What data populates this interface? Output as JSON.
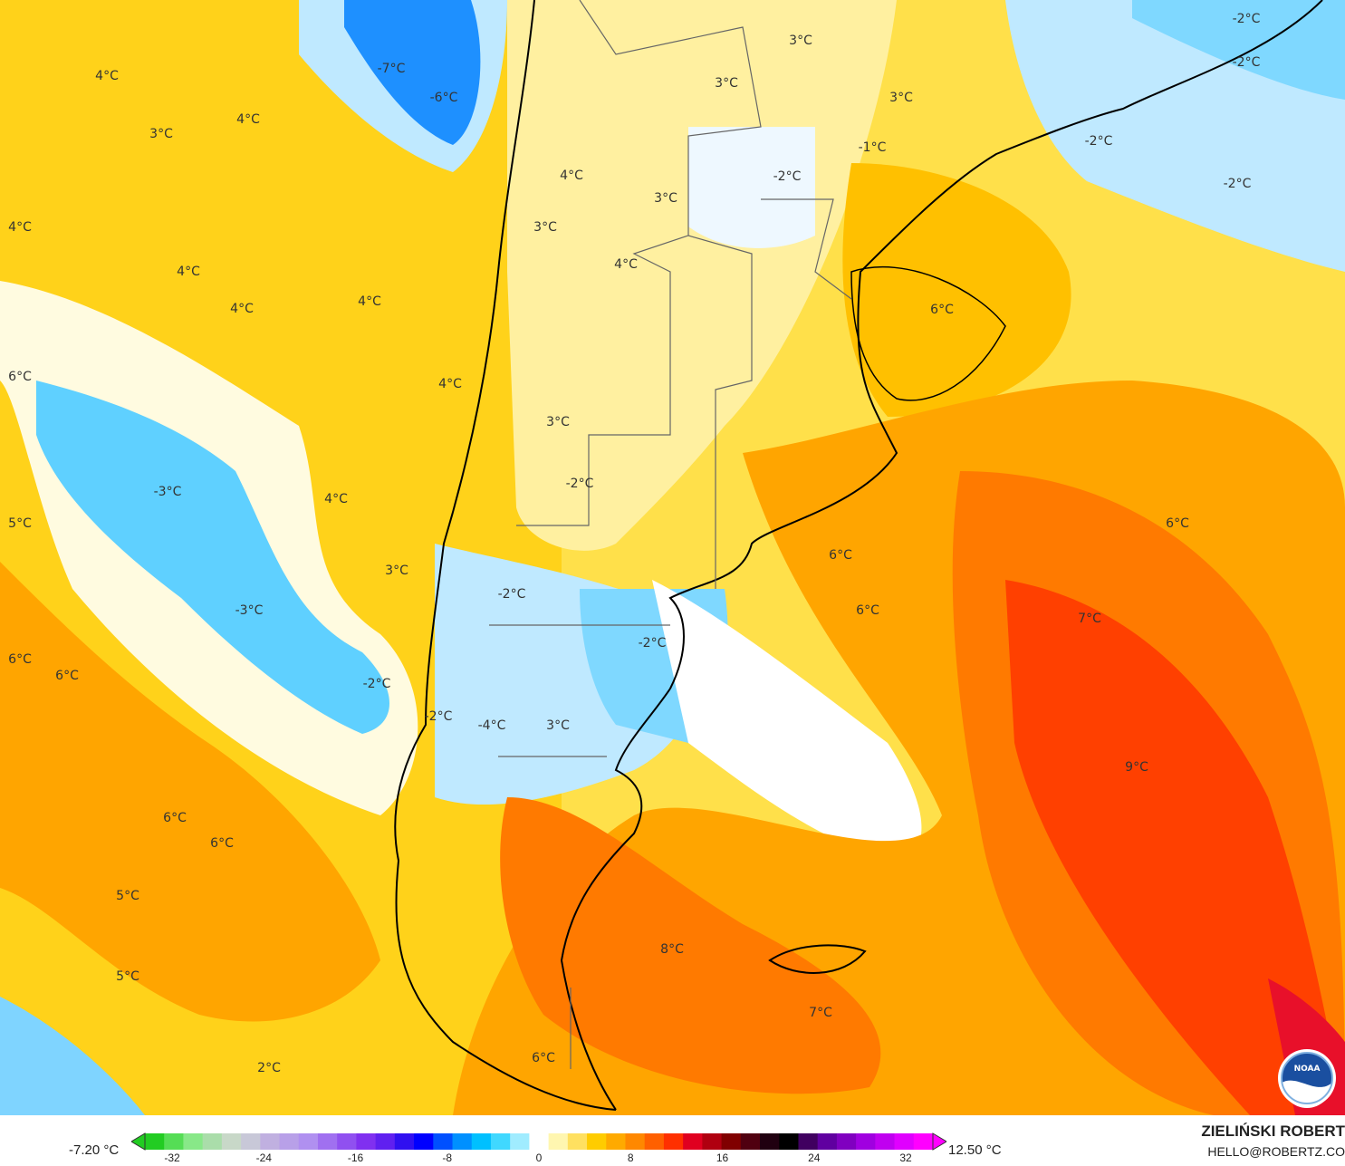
{
  "map": {
    "labels": [
      "4°C",
      "-7°C",
      "-6°C",
      "4°C",
      "3°C",
      "4°C",
      "4°C",
      "4°C",
      "4°C",
      "6°C",
      "4°C",
      "-3°C",
      "4°C",
      "5°C",
      "3°C",
      "-3°C",
      "6°C",
      "6°C",
      "-2°C",
      "-2°C",
      "-4°C",
      "3°C",
      "6°C",
      "6°C",
      "5°C",
      "5°C",
      "2°C",
      "3°C",
      "3°C",
      "3°C",
      "-1°C",
      "-2°C",
      "4°C",
      "3°C",
      "3°C",
      "4°C",
      "3°C",
      "-2°C",
      "-2°C",
      "-2°C",
      "6°C",
      "6°C",
      "6°C",
      "6°C",
      "7°C",
      "9°C",
      "8°C",
      "7°C",
      "6°C",
      "-2°C",
      "-2°C",
      "-2°C",
      "-2°C"
    ],
    "logo": "NOAA"
  },
  "legend": {
    "min_label": "-7.20 °C",
    "max_label": "12.50 °C",
    "ticks": [
      "-32",
      "-24",
      "-16",
      "-8",
      "0",
      "8",
      "16",
      "24",
      "32"
    ],
    "colors": [
      "#22cc22",
      "#55dd55",
      "#88e888",
      "#aaddaa",
      "#c8d8c8",
      "#c8c8d8",
      "#c0b0e0",
      "#b8a0e8",
      "#b090f0",
      "#a070f0",
      "#9050f0",
      "#8030f0",
      "#6020f0",
      "#3010f0",
      "#0000ff",
      "#0050ff",
      "#0090ff",
      "#00c0ff",
      "#40d8ff",
      "#a0ecff",
      "#ffffff",
      "#fff6b0",
      "#ffe060",
      "#ffcc00",
      "#ffaa00",
      "#ff8800",
      "#ff6000",
      "#ff3000",
      "#e00020",
      "#b00010",
      "#800000",
      "#500010",
      "#200010",
      "#000000",
      "#400060",
      "#6000a0",
      "#8000c0",
      "#a000e0",
      "#c000f0",
      "#e000ff",
      "#ff00ff"
    ]
  },
  "credit": {
    "name": "ZIELIŃSKI ROBERT",
    "email": "HELLO@ROBERTZ.CO"
  }
}
